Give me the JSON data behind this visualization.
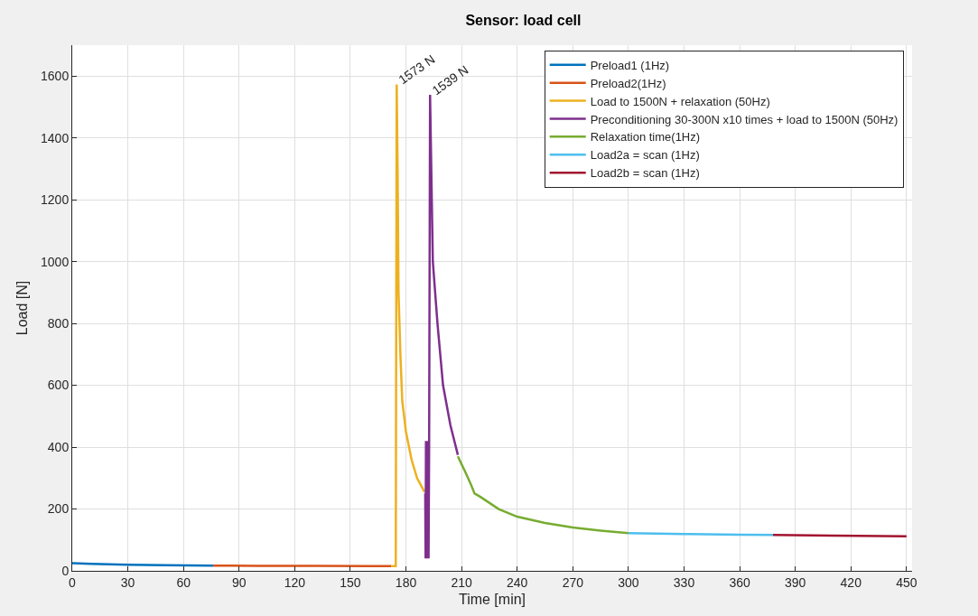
{
  "chart_data": {
    "type": "line",
    "title": "Sensor: load cell",
    "xlabel": "Time [min]",
    "ylabel": "Load [N]",
    "xlim": [
      0,
      453
    ],
    "xticks": [
      0,
      30,
      60,
      90,
      120,
      150,
      180,
      210,
      240,
      270,
      300,
      330,
      360,
      390,
      420,
      450
    ],
    "ylim": [
      0,
      1700
    ],
    "yticks": [
      0,
      200,
      400,
      600,
      800,
      1000,
      1200,
      1400,
      1600
    ],
    "grid": true,
    "legend": "top right",
    "line_style": "solid",
    "marker": "none",
    "annotations": [
      {
        "text": "1573 N",
        "x": 175,
        "y": 1573
      },
      {
        "text": "1539 N",
        "x": 193,
        "y": 1539
      }
    ],
    "series": [
      {
        "name": "Preload1 (1Hz)",
        "color": "#0072bd",
        "x": [
          0,
          10,
          30,
          50,
          76
        ],
        "values": [
          25,
          23,
          20,
          18,
          17
        ]
      },
      {
        "name": "Preload2(1Hz)",
        "color": "#d95319",
        "x": [
          76,
          100,
          130,
          160,
          172
        ],
        "values": [
          17,
          16,
          16,
          15,
          15
        ]
      },
      {
        "name": "Load to 1500N + relaxation (50Hz)",
        "color": "#edb120",
        "x": [
          172,
          174.5,
          175,
          175.5,
          176,
          177,
          178,
          180,
          183,
          186,
          190
        ],
        "values": [
          15,
          15,
          1573,
          1300,
          900,
          700,
          550,
          450,
          360,
          300,
          255
        ]
      },
      {
        "name": "Preconditioning 30-300N x10 times + load to 1500N (50Hz)",
        "color": "#7e2f8e",
        "x": [
          190.4,
          190.6,
          190.8,
          191,
          191.2,
          191.4,
          191.6,
          191.8,
          192,
          192.2,
          192.5,
          193,
          194.5,
          197,
          200,
          204,
          208
        ],
        "values": [
          250,
          40,
          420,
          40,
          420,
          40,
          420,
          40,
          420,
          40,
          400,
          1539,
          1000,
          800,
          600,
          470,
          375
        ]
      },
      {
        "name": "Relaxation time(1Hz)",
        "color": "#77ac30",
        "x": [
          208,
          212,
          215,
          217,
          220,
          230,
          240,
          255,
          270,
          285,
          300
        ],
        "values": [
          370,
          320,
          280,
          250,
          240,
          200,
          175,
          155,
          140,
          130,
          122
        ]
      },
      {
        "name": "Load2a = scan (1Hz)",
        "color": "#4dbeee",
        "x": [
          300,
          330,
          360,
          378
        ],
        "values": [
          122,
          119,
          117,
          116
        ]
      },
      {
        "name": "Load2b = scan (1Hz)",
        "color": "#a2142f",
        "x": [
          378,
          410,
          450
        ],
        "values": [
          116,
          114,
          112
        ]
      }
    ]
  }
}
